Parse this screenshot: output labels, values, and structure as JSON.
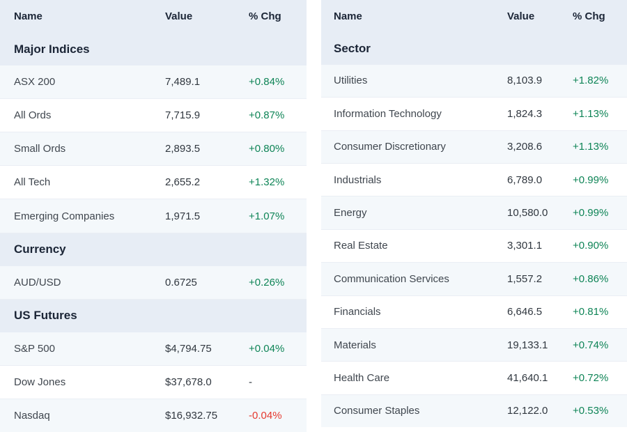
{
  "colors": {
    "header_section_bg": "#e7edf5",
    "stripe_bg": "#f4f8fb",
    "positive_text": "#0e8456",
    "negative_text": "#e5392f",
    "heading_text": "#1b2536",
    "name_text": "#3f464e",
    "value_text": "#30373f"
  },
  "tables": [
    {
      "id": "indices-table",
      "columns": {
        "name": "Name",
        "value": "Value",
        "chg": "% Chg"
      },
      "rows": [
        {
          "type": "section",
          "label": "Major Indices"
        },
        {
          "type": "data",
          "name": "ASX 200",
          "value": "7,489.1",
          "chg": "+0.84%",
          "dir": "up"
        },
        {
          "type": "data",
          "name": "All Ords",
          "value": "7,715.9",
          "chg": "+0.87%",
          "dir": "up"
        },
        {
          "type": "data",
          "name": "Small Ords",
          "value": "2,893.5",
          "chg": "+0.80%",
          "dir": "up"
        },
        {
          "type": "data",
          "name": "All Tech",
          "value": "2,655.2",
          "chg": "+1.32%",
          "dir": "up"
        },
        {
          "type": "data",
          "name": "Emerging Companies",
          "value": "1,971.5",
          "chg": "+1.07%",
          "dir": "up"
        },
        {
          "type": "section",
          "label": "Currency"
        },
        {
          "type": "data",
          "name": "AUD/USD",
          "value": "0.6725",
          "chg": "+0.26%",
          "dir": "up"
        },
        {
          "type": "section",
          "label": "US Futures"
        },
        {
          "type": "data",
          "name": "S&P 500",
          "value": "$4,794.75",
          "chg": "+0.04%",
          "dir": "up"
        },
        {
          "type": "data",
          "name": "Dow Jones",
          "value": "$37,678.0",
          "chg": "-",
          "dir": "flat"
        },
        {
          "type": "data",
          "name": "Nasdaq",
          "value": "$16,932.75",
          "chg": "-0.04%",
          "dir": "down"
        }
      ]
    },
    {
      "id": "sectors-table",
      "columns": {
        "name": "Name",
        "value": "Value",
        "chg": "% Chg"
      },
      "rows": [
        {
          "type": "section",
          "label": "Sector"
        },
        {
          "type": "data",
          "name": "Utilities",
          "value": "8,103.9",
          "chg": "+1.82%",
          "dir": "up"
        },
        {
          "type": "data",
          "name": "Information Technology",
          "value": "1,824.3",
          "chg": "+1.13%",
          "dir": "up"
        },
        {
          "type": "data",
          "name": "Consumer Discretionary",
          "value": "3,208.6",
          "chg": "+1.13%",
          "dir": "up"
        },
        {
          "type": "data",
          "name": "Industrials",
          "value": "6,789.0",
          "chg": "+0.99%",
          "dir": "up"
        },
        {
          "type": "data",
          "name": "Energy",
          "value": "10,580.0",
          "chg": "+0.99%",
          "dir": "up"
        },
        {
          "type": "data",
          "name": "Real Estate",
          "value": "3,301.1",
          "chg": "+0.90%",
          "dir": "up"
        },
        {
          "type": "data",
          "name": "Communication Services",
          "value": "1,557.2",
          "chg": "+0.86%",
          "dir": "up"
        },
        {
          "type": "data",
          "name": "Financials",
          "value": "6,646.5",
          "chg": "+0.81%",
          "dir": "up"
        },
        {
          "type": "data",
          "name": "Materials",
          "value": "19,133.1",
          "chg": "+0.74%",
          "dir": "up"
        },
        {
          "type": "data",
          "name": "Health Care",
          "value": "41,640.1",
          "chg": "+0.72%",
          "dir": "up"
        },
        {
          "type": "data",
          "name": "Consumer Staples",
          "value": "12,122.0",
          "chg": "+0.53%",
          "dir": "up"
        }
      ]
    }
  ]
}
